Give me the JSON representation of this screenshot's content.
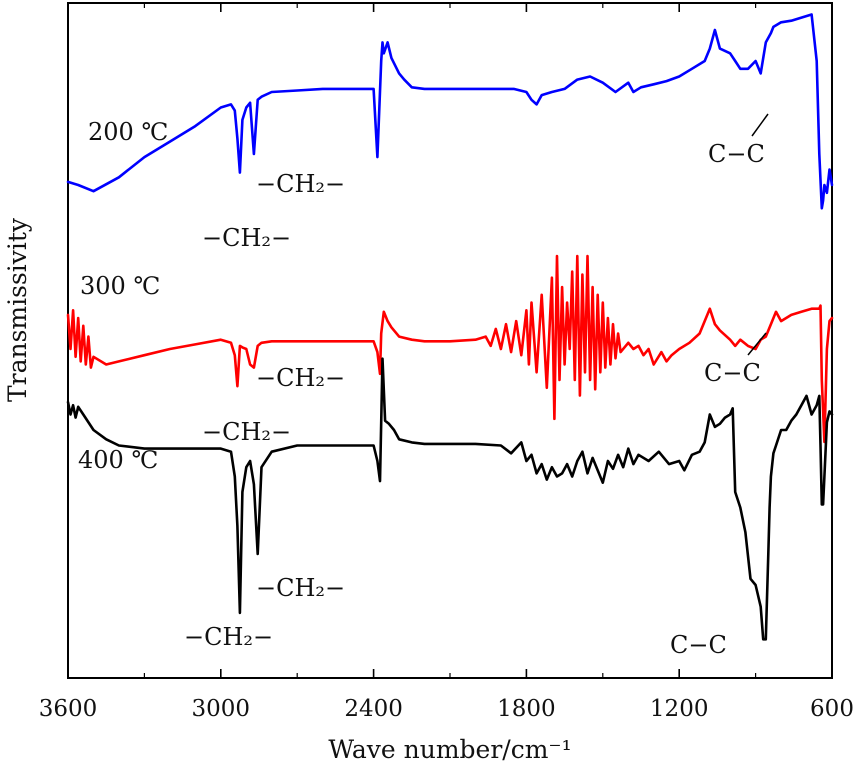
{
  "chart_data": {
    "type": "line",
    "xlabel": "Wave number/cm⁻¹",
    "ylabel": "Transmissivity",
    "xlim": [
      3600,
      600
    ],
    "x_reversed": true,
    "x_ticks": [
      3600,
      3000,
      2400,
      1800,
      1200,
      600
    ],
    "y_tick_labels": false,
    "grid": false,
    "series": [
      {
        "name": "200 ℃",
        "color": "#0000ff",
        "x": [
          3600,
          3560,
          3500,
          3400,
          3300,
          3200,
          3100,
          3000,
          2960,
          2945,
          2935,
          2925,
          2915,
          2900,
          2885,
          2870,
          2855,
          2840,
          2800,
          2700,
          2600,
          2500,
          2400,
          2385,
          2370,
          2365,
          2360,
          2345,
          2330,
          2300,
          2280,
          2250,
          2200,
          2100,
          2000,
          1900,
          1850,
          1800,
          1780,
          1760,
          1740,
          1700,
          1650,
          1600,
          1550,
          1500,
          1450,
          1400,
          1380,
          1350,
          1300,
          1250,
          1200,
          1150,
          1100,
          1080,
          1060,
          1040,
          1000,
          980,
          960,
          930,
          900,
          880,
          860,
          840,
          830,
          800,
          760,
          720,
          680,
          660,
          650,
          640,
          635,
          630,
          620,
          610,
          600
        ],
        "y": [
          0.02,
          0.0,
          -0.04,
          0.05,
          0.18,
          0.28,
          0.38,
          0.5,
          0.52,
          0.48,
          0.3,
          0.08,
          0.42,
          0.5,
          0.53,
          0.2,
          0.55,
          0.57,
          0.6,
          0.61,
          0.62,
          0.62,
          0.62,
          0.18,
          0.8,
          0.92,
          0.85,
          0.92,
          0.82,
          0.72,
          0.68,
          0.63,
          0.62,
          0.62,
          0.62,
          0.62,
          0.62,
          0.6,
          0.55,
          0.52,
          0.58,
          0.6,
          0.62,
          0.68,
          0.7,
          0.66,
          0.6,
          0.66,
          0.6,
          0.63,
          0.65,
          0.67,
          0.7,
          0.75,
          0.8,
          0.88,
          1.0,
          0.88,
          0.85,
          0.8,
          0.75,
          0.75,
          0.8,
          0.72,
          0.92,
          0.98,
          1.02,
          1.05,
          1.06,
          1.08,
          1.1,
          0.8,
          0.2,
          -0.15,
          -0.1,
          0.0,
          -0.05,
          0.1,
          0.0
        ]
      },
      {
        "name": "300 ℃",
        "color": "#ff0000",
        "x": [
          3600,
          3590,
          3580,
          3570,
          3560,
          3550,
          3540,
          3530,
          3520,
          3510,
          3500,
          3450,
          3400,
          3300,
          3200,
          3100,
          3000,
          2960,
          2945,
          2935,
          2925,
          2915,
          2900,
          2885,
          2870,
          2855,
          2840,
          2800,
          2700,
          2600,
          2500,
          2400,
          2385,
          2375,
          2370,
          2360,
          2345,
          2330,
          2300,
          2250,
          2200,
          2100,
          2000,
          1960,
          1940,
          1920,
          1900,
          1880,
          1860,
          1840,
          1820,
          1800,
          1790,
          1780,
          1760,
          1740,
          1720,
          1700,
          1690,
          1680,
          1670,
          1660,
          1650,
          1640,
          1630,
          1620,
          1610,
          1600,
          1590,
          1580,
          1570,
          1560,
          1550,
          1540,
          1530,
          1520,
          1510,
          1500,
          1490,
          1480,
          1470,
          1460,
          1450,
          1440,
          1430,
          1400,
          1380,
          1360,
          1340,
          1320,
          1300,
          1270,
          1250,
          1230,
          1200,
          1160,
          1120,
          1100,
          1080,
          1060,
          1040,
          1000,
          980,
          960,
          930,
          900,
          880,
          860,
          840,
          820,
          800,
          760,
          720,
          680,
          660,
          650,
          645,
          640,
          635,
          630,
          620,
          610,
          600
        ],
        "y": [
          0.42,
          0.2,
          0.45,
          0.15,
          0.4,
          0.12,
          0.35,
          0.1,
          0.28,
          0.08,
          0.15,
          0.1,
          0.12,
          0.16,
          0.2,
          0.23,
          0.26,
          0.24,
          0.16,
          -0.04,
          0.22,
          0.21,
          0.2,
          0.1,
          0.08,
          0.22,
          0.24,
          0.25,
          0.25,
          0.25,
          0.25,
          0.25,
          0.18,
          0.04,
          0.3,
          0.44,
          0.38,
          0.34,
          0.28,
          0.26,
          0.25,
          0.25,
          0.26,
          0.28,
          0.22,
          0.33,
          0.2,
          0.36,
          0.18,
          0.38,
          0.16,
          0.45,
          0.1,
          0.5,
          0.05,
          0.55,
          -0.05,
          0.66,
          -0.25,
          0.8,
          0.0,
          0.6,
          0.1,
          0.5,
          0.2,
          0.7,
          0.0,
          0.8,
          -0.1,
          0.68,
          0.05,
          0.8,
          0.0,
          0.6,
          -0.06,
          0.55,
          0.05,
          0.5,
          0.08,
          0.4,
          0.1,
          0.36,
          0.14,
          0.3,
          0.18,
          0.24,
          0.2,
          0.22,
          0.16,
          0.2,
          0.1,
          0.18,
          0.12,
          0.16,
          0.2,
          0.24,
          0.3,
          0.38,
          0.46,
          0.36,
          0.32,
          0.26,
          0.22,
          0.26,
          0.22,
          0.2,
          0.26,
          0.28,
          0.36,
          0.44,
          0.38,
          0.42,
          0.44,
          0.46,
          0.46,
          0.46,
          0.48,
          0.0,
          -0.2,
          -0.4,
          0.2,
          0.38,
          0.4
        ]
      },
      {
        "name": "400 ℃",
        "color": "#000000",
        "x": [
          3600,
          3590,
          3580,
          3570,
          3560,
          3540,
          3500,
          3450,
          3400,
          3300,
          3200,
          3100,
          3000,
          2960,
          2945,
          2935,
          2925,
          2915,
          2900,
          2885,
          2870,
          2855,
          2840,
          2800,
          2700,
          2600,
          2500,
          2400,
          2385,
          2375,
          2365,
          2355,
          2340,
          2320,
          2300,
          2250,
          2200,
          2100,
          2000,
          1900,
          1860,
          1820,
          1800,
          1780,
          1760,
          1740,
          1720,
          1700,
          1680,
          1660,
          1640,
          1620,
          1600,
          1580,
          1560,
          1540,
          1500,
          1480,
          1460,
          1440,
          1420,
          1400,
          1380,
          1360,
          1320,
          1280,
          1240,
          1200,
          1180,
          1150,
          1120,
          1100,
          1080,
          1060,
          1040,
          1020,
          1000,
          990,
          980,
          960,
          940,
          920,
          900,
          880,
          870,
          860,
          850,
          845,
          840,
          830,
          820,
          800,
          780,
          760,
          740,
          720,
          700,
          680,
          660,
          650,
          645,
          640,
          635,
          630,
          620,
          610,
          600
        ],
        "y": [
          0.58,
          0.5,
          0.56,
          0.48,
          0.55,
          0.5,
          0.4,
          0.34,
          0.3,
          0.28,
          0.28,
          0.28,
          0.28,
          0.26,
          0.1,
          -0.22,
          -0.78,
          0.0,
          0.16,
          0.2,
          0.05,
          -0.4,
          0.16,
          0.26,
          0.3,
          0.3,
          0.3,
          0.3,
          0.2,
          0.07,
          0.86,
          0.46,
          0.44,
          0.4,
          0.34,
          0.32,
          0.31,
          0.31,
          0.31,
          0.3,
          0.25,
          0.32,
          0.2,
          0.24,
          0.12,
          0.18,
          0.08,
          0.16,
          0.1,
          0.12,
          0.18,
          0.1,
          0.2,
          0.26,
          0.12,
          0.22,
          0.06,
          0.2,
          0.15,
          0.24,
          0.16,
          0.28,
          0.18,
          0.24,
          0.2,
          0.26,
          0.18,
          0.2,
          0.14,
          0.24,
          0.26,
          0.32,
          0.5,
          0.42,
          0.44,
          0.48,
          0.5,
          0.54,
          0.0,
          -0.1,
          -0.26,
          -0.56,
          -0.6,
          -0.74,
          -0.95,
          -0.95,
          -0.4,
          -0.1,
          0.1,
          0.25,
          0.3,
          0.4,
          0.4,
          0.46,
          0.5,
          0.56,
          0.62,
          0.5,
          0.56,
          0.62,
          0.3,
          -0.08,
          -0.08,
          0.1,
          0.45,
          0.52,
          0.5
        ]
      }
    ],
    "annotations": [
      {
        "text": "200 ℃",
        "series": "200 ℃",
        "kind": "series-label"
      },
      {
        "text": "300 ℃",
        "series": "300 ℃",
        "kind": "series-label"
      },
      {
        "text": "400 ℃",
        "series": "400 ℃",
        "kind": "series-label"
      },
      {
        "text": "−CH₂−",
        "series": "200 ℃",
        "x": 2930,
        "kind": "peak-label"
      },
      {
        "text": "−CH₂−",
        "series": "200 ℃",
        "x": 2855,
        "kind": "peak-label"
      },
      {
        "text": "C−C",
        "series": "200 ℃",
        "x": 830,
        "kind": "peak-label"
      },
      {
        "text": "−CH₂−",
        "series": "300 ℃",
        "x": 2930,
        "kind": "peak-label"
      },
      {
        "text": "−CH₂−",
        "series": "300 ℃",
        "x": 2855,
        "kind": "peak-label"
      },
      {
        "text": "C−C",
        "series": "300 ℃",
        "x": 830,
        "kind": "peak-label"
      },
      {
        "text": "−CH₂−",
        "series": "400 ℃",
        "x": 2930,
        "kind": "peak-label"
      },
      {
        "text": "−CH₂−",
        "series": "400 ℃",
        "x": 2855,
        "kind": "peak-label"
      },
      {
        "text": "C−C",
        "series": "400 ℃",
        "x": 830,
        "kind": "peak-label"
      }
    ]
  }
}
